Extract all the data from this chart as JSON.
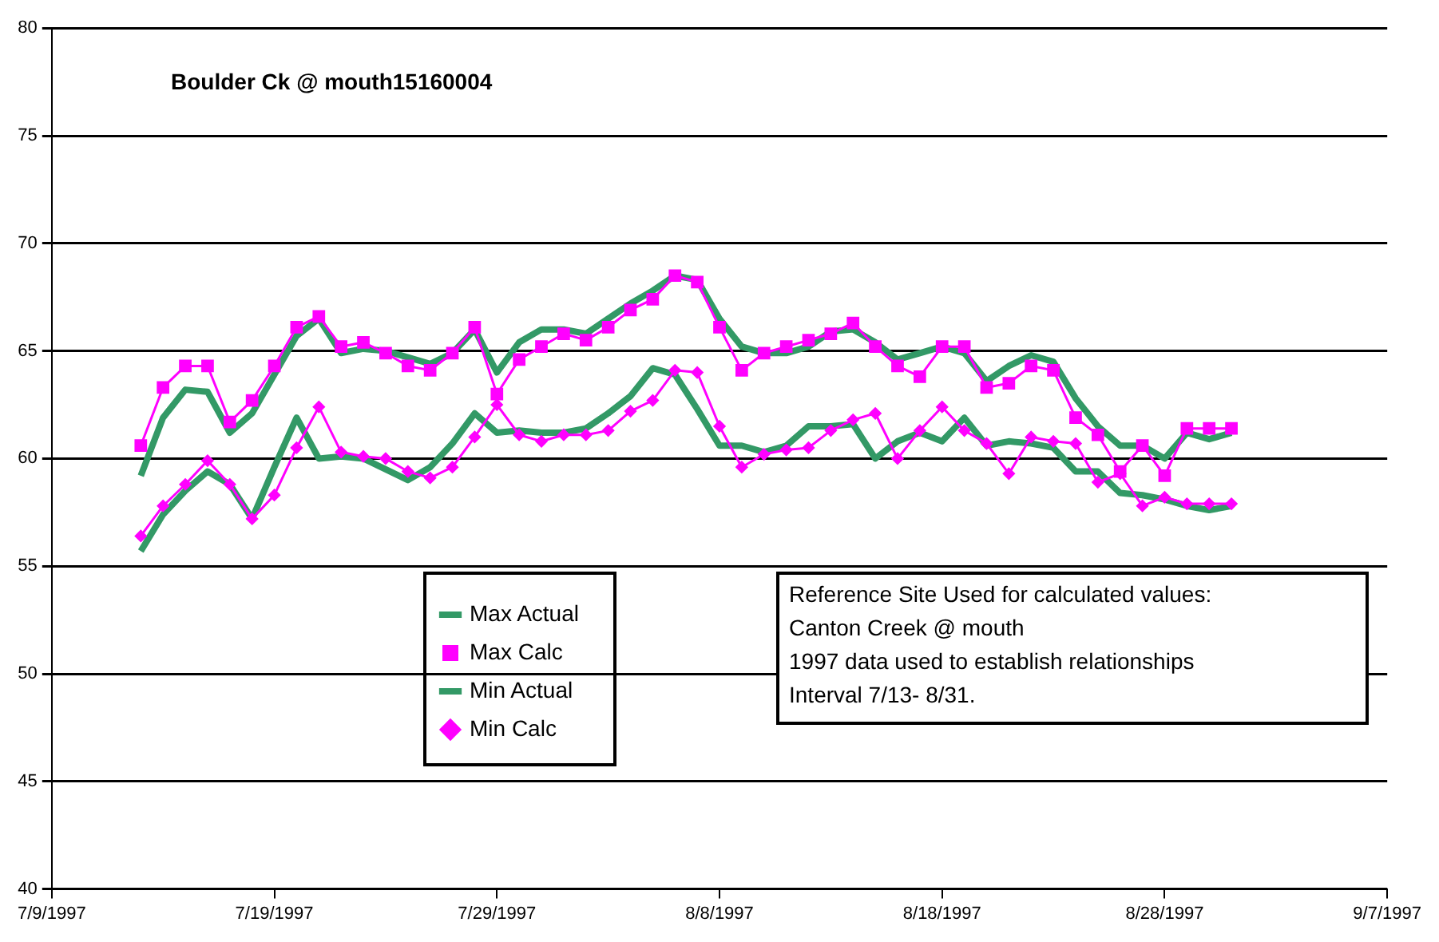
{
  "chart_data": {
    "type": "line",
    "title": "Boulder Ck @ mouth15160004",
    "x": [
      "1997-07-13",
      "1997-07-14",
      "1997-07-15",
      "1997-07-16",
      "1997-07-17",
      "1997-07-18",
      "1997-07-19",
      "1997-07-20",
      "1997-07-21",
      "1997-07-22",
      "1997-07-23",
      "1997-07-24",
      "1997-07-25",
      "1997-07-26",
      "1997-07-27",
      "1997-07-28",
      "1997-07-29",
      "1997-07-30",
      "1997-07-31",
      "1997-08-01",
      "1997-08-02",
      "1997-08-03",
      "1997-08-04",
      "1997-08-05",
      "1997-08-06",
      "1997-08-07",
      "1997-08-08",
      "1997-08-09",
      "1997-08-10",
      "1997-08-11",
      "1997-08-12",
      "1997-08-13",
      "1997-08-14",
      "1997-08-15",
      "1997-08-16",
      "1997-08-17",
      "1997-08-18",
      "1997-08-19",
      "1997-08-20",
      "1997-08-21",
      "1997-08-22",
      "1997-08-23",
      "1997-08-24",
      "1997-08-25",
      "1997-08-26",
      "1997-08-27",
      "1997-08-28",
      "1997-08-29",
      "1997-08-30",
      "1997-08-31"
    ],
    "series": [
      {
        "name": "Max Actual",
        "color": "#339966",
        "marker": "none",
        "values": [
          59.2,
          61.9,
          63.2,
          63.1,
          61.2,
          62.1,
          63.9,
          65.7,
          66.5,
          64.9,
          65.1,
          65.0,
          64.7,
          64.4,
          64.9,
          66.0,
          64.0,
          65.4,
          66.0,
          66.0,
          65.8,
          66.5,
          67.2,
          67.8,
          68.5,
          68.3,
          66.5,
          65.2,
          64.9,
          64.9,
          65.2,
          65.9,
          66.0,
          65.4,
          64.6,
          64.9,
          65.2,
          64.9,
          63.6,
          64.3,
          64.8,
          64.5,
          62.8,
          61.5,
          60.6,
          60.6,
          60.0,
          61.2,
          60.9,
          61.2
        ]
      },
      {
        "name": "Max Calc",
        "color": "#ff00ff",
        "marker": "square",
        "values": [
          60.6,
          63.3,
          64.3,
          64.3,
          61.7,
          62.7,
          64.3,
          66.1,
          66.6,
          65.2,
          65.4,
          64.9,
          64.3,
          64.1,
          64.9,
          66.1,
          63.0,
          64.6,
          65.2,
          65.8,
          65.5,
          66.1,
          66.9,
          67.4,
          68.5,
          68.2,
          66.1,
          64.1,
          64.9,
          65.2,
          65.5,
          65.8,
          66.3,
          65.2,
          64.3,
          63.8,
          65.2,
          65.2,
          63.3,
          63.5,
          64.3,
          64.1,
          61.9,
          61.1,
          59.4,
          60.6,
          59.2,
          61.4,
          61.4,
          61.4
        ]
      },
      {
        "name": "Min Actual",
        "color": "#339966",
        "marker": "none",
        "values": [
          55.7,
          57.4,
          58.5,
          59.4,
          58.8,
          57.2,
          59.6,
          61.9,
          60.0,
          60.1,
          60.0,
          59.5,
          59.0,
          59.6,
          60.7,
          62.1,
          61.2,
          61.3,
          61.2,
          61.2,
          61.4,
          62.1,
          62.9,
          64.2,
          63.9,
          62.3,
          60.6,
          60.6,
          60.3,
          60.6,
          61.5,
          61.5,
          61.6,
          60.0,
          60.8,
          61.2,
          60.8,
          61.9,
          60.6,
          60.8,
          60.7,
          60.5,
          59.4,
          59.4,
          58.4,
          58.3,
          58.1,
          57.8,
          57.6,
          57.8
        ]
      },
      {
        "name": "Min Calc",
        "color": "#ff00ff",
        "marker": "diamond",
        "values": [
          56.4,
          57.8,
          58.8,
          59.9,
          58.8,
          57.2,
          58.3,
          60.5,
          62.4,
          60.3,
          60.1,
          60.0,
          59.4,
          59.1,
          59.6,
          61.0,
          62.5,
          61.1,
          60.8,
          61.1,
          61.1,
          61.3,
          62.2,
          62.7,
          64.1,
          64.0,
          61.5,
          59.6,
          60.2,
          60.4,
          60.5,
          61.3,
          61.8,
          62.1,
          60.0,
          61.3,
          62.4,
          61.3,
          60.7,
          59.3,
          61.0,
          60.8,
          60.7,
          58.9,
          59.3,
          57.8,
          58.2,
          57.9,
          57.9,
          57.9
        ]
      }
    ],
    "xlim": [
      "1997-07-09",
      "1997-09-07"
    ],
    "xticks": [
      {
        "value": "1997-07-09",
        "label": "7/9/1997"
      },
      {
        "value": "1997-07-19",
        "label": "7/19/1997"
      },
      {
        "value": "1997-07-29",
        "label": "7/29/1997"
      },
      {
        "value": "1997-08-08",
        "label": "8/8/1997"
      },
      {
        "value": "1997-08-18",
        "label": "8/18/1997"
      },
      {
        "value": "1997-08-28",
        "label": "8/28/1997"
      },
      {
        "value": "1997-09-07",
        "label": "9/7/1997"
      }
    ],
    "ylim": [
      40,
      80
    ],
    "yticks": [
      40,
      45,
      50,
      55,
      60,
      65,
      70,
      75,
      80
    ],
    "grid": "y",
    "legend": "bottom left",
    "line_style": "solid",
    "annotations": [
      "Reference Site Used for calculated values:",
      "Canton Creek @ mouth",
      "1997 data used to establish relationships",
      "Interval 7/13- 8/31."
    ]
  }
}
